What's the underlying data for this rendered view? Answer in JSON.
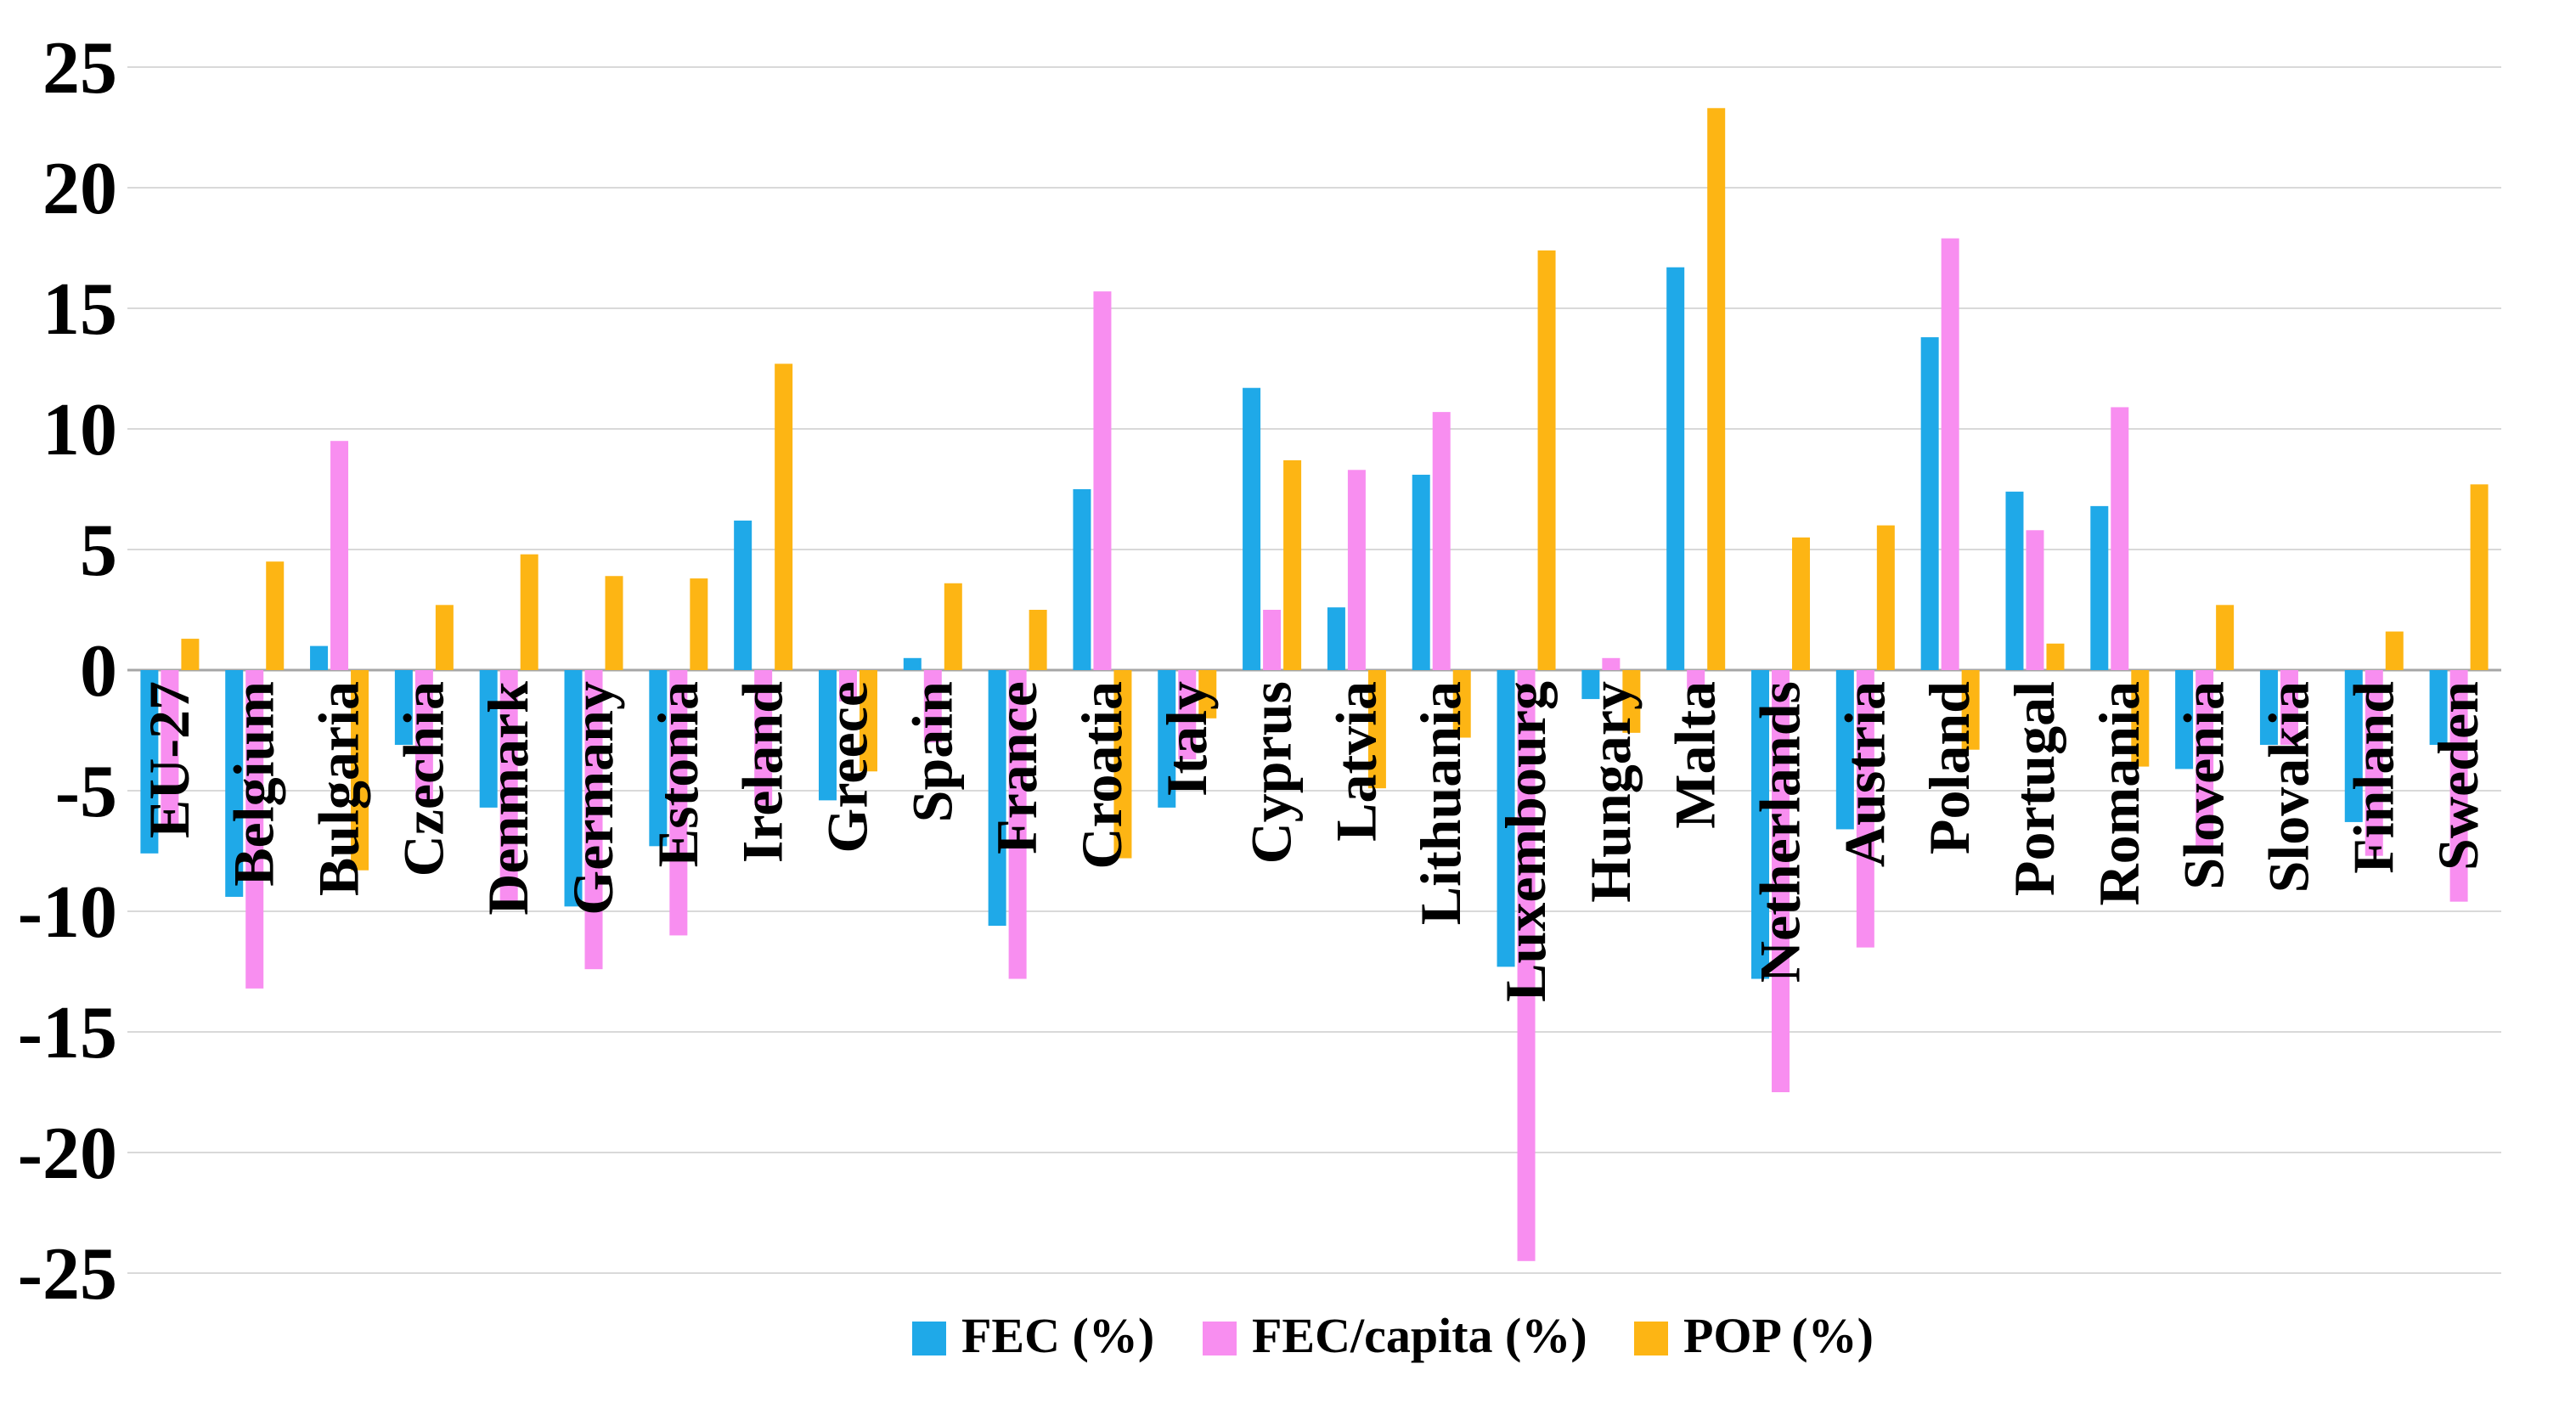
{
  "chart_data": {
    "type": "bar",
    "title": "",
    "xlabel": "",
    "ylabel": "",
    "ylim": [
      -25,
      25
    ],
    "ytick_step": 5,
    "yticks": [
      25,
      20,
      15,
      10,
      5,
      0,
      -5,
      -10,
      -15,
      -20,
      -25
    ],
    "grid": true,
    "legend_position": "bottom",
    "categories": [
      "EU-27",
      "Belgium",
      "Bulgaria",
      "Czechia",
      "Denmark",
      "Germany",
      "Estonia",
      "Ireland",
      "Greece",
      "Spain",
      "France",
      "Croatia",
      "Italy",
      "Cyprus",
      "Latvia",
      "Lithuania",
      "Luxembourg",
      "Hungary",
      "Malta",
      "Netherlands",
      "Austria",
      "Poland",
      "Portugal",
      "Romania",
      "Slovenia",
      "Slovakia",
      "Finland",
      "Sweden"
    ],
    "series": [
      {
        "name": "FEC (%)",
        "color": "#1FA9E8",
        "values": [
          -7.6,
          -9.4,
          1.0,
          -3.1,
          -5.7,
          -9.8,
          -7.3,
          6.2,
          -5.4,
          0.5,
          -10.6,
          7.5,
          -5.7,
          11.7,
          2.6,
          8.1,
          -12.3,
          -1.2,
          16.7,
          -12.8,
          -6.6,
          13.8,
          7.4,
          6.8,
          -4.1,
          -3.1,
          -6.3,
          -3.1
        ]
      },
      {
        "name": "FEC/capita (%)",
        "color": "#F88EF0",
        "values": [
          -6.5,
          -13.2,
          9.5,
          -5.4,
          -9.6,
          -12.4,
          -11.0,
          -5.6,
          -1.3,
          -3.0,
          -12.8,
          15.7,
          -3.7,
          2.5,
          8.3,
          10.7,
          -24.5,
          0.5,
          -0.8,
          -17.5,
          -11.5,
          17.9,
          5.8,
          10.9,
          -7.3,
          -3.1,
          -7.7,
          -9.6
        ]
      },
      {
        "name": "POP (%)",
        "color": "#FDB514",
        "values": [
          1.3,
          4.5,
          -8.3,
          2.7,
          4.8,
          3.9,
          3.8,
          12.7,
          -4.2,
          3.6,
          2.5,
          -7.8,
          -2.0,
          8.7,
          -4.9,
          -2.8,
          17.4,
          -2.6,
          23.3,
          5.5,
          6.0,
          -3.3,
          1.1,
          -4.0,
          2.7,
          0.0,
          1.6,
          7.7
        ]
      }
    ],
    "colors": {
      "gridline": "#D9D9D9",
      "zero_line": "#A6A6A6",
      "background": "#FFFFFF",
      "text": "#000000"
    }
  },
  "legend": {
    "items": [
      {
        "label": "FEC (%)",
        "color": "#1FA9E8"
      },
      {
        "label": "FEC/capita (%)",
        "color": "#F88EF0"
      },
      {
        "label": "POP (%)",
        "color": "#FDB514"
      }
    ]
  }
}
